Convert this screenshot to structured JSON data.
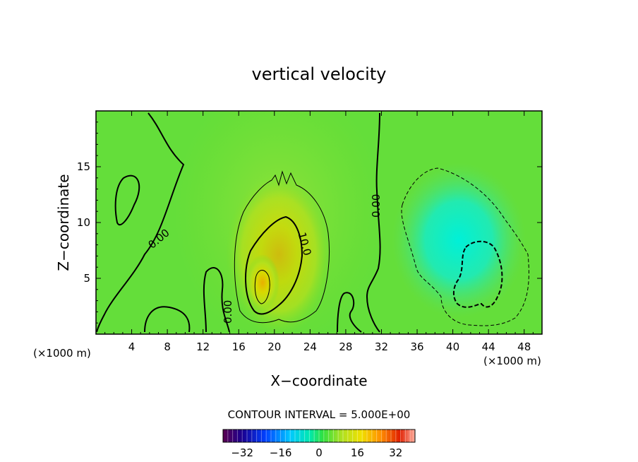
{
  "chart_data": {
    "type": "heatmap",
    "title": "vertical velocity",
    "xlabel": "X−coordinate",
    "ylabel": "Z−coordinate",
    "x_unit": "(×1000 m)",
    "y_unit": "(×1000 m)",
    "xlim": [
      0,
      50
    ],
    "ylim": [
      0,
      20
    ],
    "x_ticks": [
      4,
      8,
      12,
      16,
      20,
      24,
      28,
      32,
      36,
      40,
      44,
      48
    ],
    "y_ticks": [
      5,
      10,
      15
    ],
    "contour_interval_text": "CONTOUR INTERVAL = 5.000E+00",
    "contour_labels": [
      {
        "text": "0.00",
        "x": 7.3,
        "y": 8.3,
        "angle": -40
      },
      {
        "text": "0.00",
        "x": 15.2,
        "y": 2.0,
        "angle": -90
      },
      {
        "text": "0.00",
        "x": 31.8,
        "y": 11.5,
        "angle": -90
      },
      {
        "text": "10.0",
        "x": 23.0,
        "y": 8.0,
        "angle": 75
      }
    ],
    "updraft": {
      "center_x": 18.5,
      "center_z": 4.5,
      "max_value": 12
    },
    "downdraft": {
      "center_x": 42.5,
      "center_z": 6.5,
      "min_value": -8
    },
    "colorbar": {
      "range": [
        -40,
        40
      ],
      "ticks": [
        -32,
        -16,
        0,
        16,
        32
      ],
      "tick_labels": [
        "−32",
        "−16",
        "0",
        "16",
        "32"
      ]
    }
  }
}
